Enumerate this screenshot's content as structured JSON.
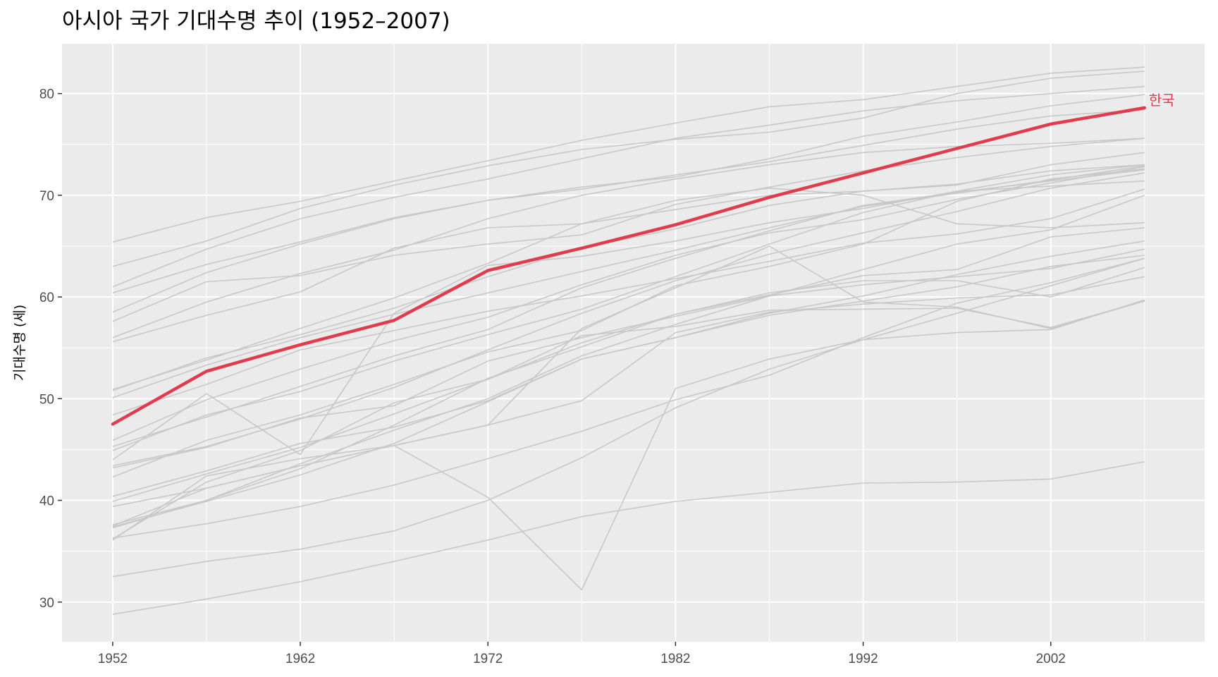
{
  "chart_data": {
    "type": "line",
    "title": "아시아 국가 기대수명 추이 (1952–2007)",
    "xlabel": "",
    "ylabel": "기대수명 (세)",
    "xlim": [
      1949.3,
      2010.2
    ],
    "ylim": [
      26.1,
      84.9
    ],
    "xticks": [
      1952,
      1962,
      1972,
      1982,
      1992,
      2002
    ],
    "yticks": [
      30,
      40,
      50,
      60,
      70,
      80
    ],
    "grid": true,
    "x": [
      1952,
      1957,
      1962,
      1967,
      1972,
      1977,
      1982,
      1987,
      1992,
      1997,
      2002,
      2007
    ],
    "highlight": {
      "label": "한국",
      "color": "#e03c4e",
      "values": [
        47.5,
        52.7,
        55.3,
        57.7,
        62.6,
        64.8,
        67.1,
        69.8,
        72.2,
        74.6,
        77.0,
        78.6
      ]
    },
    "background_color": "#c8c8c8",
    "series": [
      {
        "values": [
          65.4,
          67.8,
          69.4,
          71.4,
          73.4,
          75.4,
          77.1,
          78.7,
          79.4,
          80.7,
          82.0,
          82.6
        ]
      },
      {
        "values": [
          63.0,
          65.5,
          68.7,
          71.0,
          72.9,
          74.5,
          75.5,
          76.2,
          77.6,
          80.0,
          81.5,
          82.2
        ]
      },
      {
        "values": [
          61.0,
          64.7,
          67.7,
          69.8,
          71.6,
          73.6,
          75.6,
          76.9,
          78.3,
          79.3,
          80.0,
          80.7
        ]
      },
      {
        "values": [
          60.4,
          63.2,
          65.4,
          67.8,
          69.5,
          70.8,
          71.8,
          73.6,
          75.8,
          77.2,
          78.8,
          79.9
        ]
      },
      {
        "values": [
          58.5,
          62.4,
          65.2,
          67.7,
          69.5,
          70.6,
          72.0,
          73.3,
          74.9,
          76.5,
          77.8,
          78.4
        ]
      },
      {
        "values": [
          57.6,
          61.5,
          62.1,
          64.1,
          65.2,
          66.1,
          69.1,
          70.8,
          72.4,
          73.7,
          74.8,
          75.6
        ]
      },
      {
        "values": [
          56.0,
          59.5,
          62.3,
          64.6,
          67.7,
          70.0,
          71.6,
          73.0,
          74.2,
          74.8,
          75.1,
          75.6
        ]
      },
      {
        "values": [
          55.6,
          58.2,
          60.5,
          64.8,
          66.8,
          67.2,
          68.6,
          70.0,
          70.4,
          71.0,
          73.0,
          74.2
        ]
      },
      {
        "values": [
          50.9,
          53.8,
          56.9,
          59.9,
          63.3,
          67.2,
          69.5,
          70.7,
          70.0,
          67.2,
          66.8,
          67.3
        ]
      },
      {
        "values": [
          50.8,
          54.0,
          56.3,
          58.9,
          62.0,
          64.8,
          66.7,
          69.0,
          70.4,
          71.1,
          72.4,
          73.0
        ]
      },
      {
        "values": [
          50.1,
          53.3,
          56.0,
          58.3,
          60.4,
          62.5,
          64.6,
          66.8,
          68.9,
          70.2,
          71.5,
          72.9
        ]
      },
      {
        "values": [
          48.4,
          51.4,
          54.8,
          56.7,
          58.6,
          60.1,
          61.8,
          63.5,
          65.3,
          66.2,
          67.7,
          70.6
        ]
      },
      {
        "values": [
          45.9,
          49.9,
          52.9,
          55.7,
          58.0,
          61.2,
          64.1,
          66.3,
          67.6,
          69.6,
          71.2,
          72.8
        ]
      },
      {
        "values": [
          45.3,
          48.2,
          51.2,
          54.2,
          56.8,
          60.9,
          63.8,
          66.5,
          69.0,
          70.3,
          71.4,
          72.5
        ]
      },
      {
        "values": [
          44.9,
          48.4,
          50.7,
          53.7,
          56.3,
          58.8,
          62.0,
          65.2,
          68.3,
          70.4,
          70.9,
          71.4
        ]
      },
      {
        "values": [
          44.0,
          50.5,
          44.5,
          58.4,
          63.1,
          64.0,
          65.5,
          67.3,
          68.7,
          70.4,
          72.0,
          73.0
        ]
      },
      {
        "values": [
          43.4,
          45.3,
          48.0,
          51.1,
          54.8,
          58.4,
          61.6,
          64.2,
          66.3,
          68.4,
          70.7,
          72.2
        ]
      },
      {
        "values": [
          43.2,
          45.2,
          48.1,
          49.3,
          53.7,
          56.0,
          58.1,
          60.1,
          62.7,
          65.2,
          66.6,
          70.0
        ]
      },
      {
        "values": [
          42.3,
          45.9,
          48.4,
          51.4,
          54.6,
          56.7,
          61.1,
          63.0,
          65.2,
          69.4,
          71.6,
          72.6
        ]
      },
      {
        "values": [
          40.4,
          42.9,
          45.6,
          47.2,
          49.8,
          53.9,
          56.0,
          58.4,
          60.1,
          62.2,
          64.0,
          65.5
        ]
      },
      {
        "values": [
          39.9,
          42.6,
          45.2,
          48.5,
          51.9,
          55.5,
          58.3,
          60.2,
          62.1,
          62.7,
          65.9,
          66.8
        ]
      },
      {
        "values": [
          39.4,
          41.2,
          43.4,
          45.4,
          40.3,
          31.2,
          51.0,
          53.9,
          55.8,
          56.5,
          56.8,
          59.7
        ]
      },
      {
        "values": [
          37.6,
          40.0,
          43.6,
          46.9,
          50.0,
          54.2,
          57.3,
          60.1,
          61.2,
          62.0,
          62.8,
          64.7
        ]
      },
      {
        "values": [
          37.5,
          41.2,
          43.4,
          45.4,
          47.4,
          49.8,
          56.5,
          58.5,
          59.3,
          59.9,
          60.2,
          62.0
        ]
      },
      {
        "values": [
          37.4,
          39.9,
          42.5,
          45.6,
          49.7,
          53.9,
          56.0,
          58.2,
          59.6,
          61.0,
          63.0,
          64.1
        ]
      },
      {
        "values": [
          37.3,
          40.0,
          43.1,
          47.4,
          52.0,
          55.1,
          58.3,
          60.4,
          61.6,
          61.6,
          60.0,
          62.9
        ]
      },
      {
        "values": [
          36.3,
          37.7,
          39.4,
          41.5,
          44.1,
          46.8,
          49.9,
          52.3,
          56.0,
          59.4,
          61.4,
          63.8
        ]
      },
      {
        "values": [
          36.2,
          41.8,
          44.9,
          49.6,
          51.9,
          56.2,
          57.1,
          58.7,
          58.8,
          58.9,
          57.0,
          59.6
        ]
      },
      {
        "values": [
          36.1,
          42.4,
          44.1,
          45.4,
          47.4,
          56.9,
          60.9,
          65.0,
          59.5,
          59.0,
          56.9,
          59.6
        ]
      },
      {
        "values": [
          32.5,
          34.0,
          35.2,
          37.0,
          40.0,
          44.2,
          49.1,
          52.9,
          55.8,
          58.4,
          61.1,
          63.8
        ]
      },
      {
        "values": [
          28.8,
          30.3,
          32.0,
          34.0,
          36.1,
          38.4,
          39.9,
          40.8,
          41.7,
          41.8,
          42.1,
          43.8
        ]
      }
    ]
  }
}
